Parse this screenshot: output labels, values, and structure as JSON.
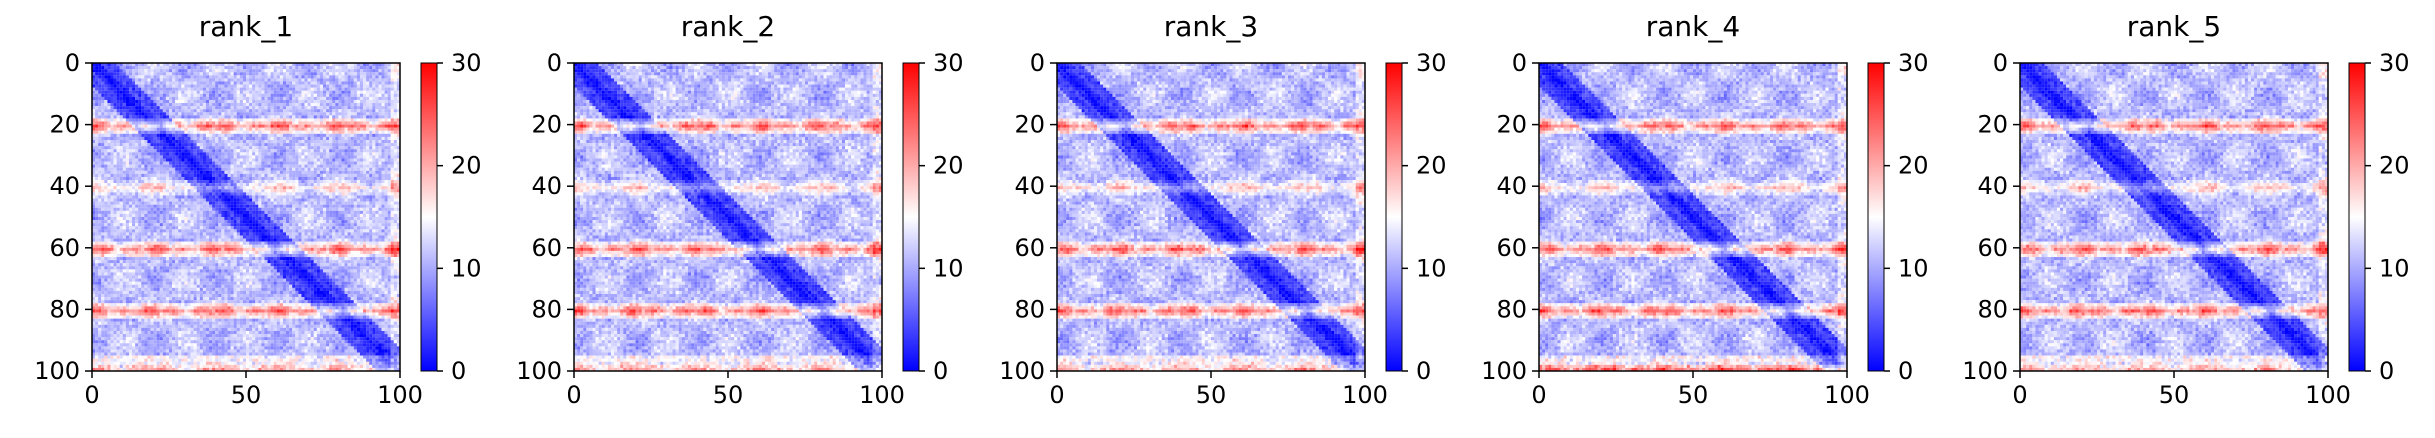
{
  "chart_data": [
    {
      "type": "heatmap",
      "title": "rank_1",
      "x_ticks": [
        0,
        50,
        100
      ],
      "y_ticks": [
        0,
        20,
        40,
        60,
        80,
        100
      ],
      "xlim": [
        0,
        100
      ],
      "ylim": [
        100,
        0
      ],
      "colorbar": {
        "range": [
          0,
          30
        ],
        "ticks": [
          0,
          10,
          20,
          30
        ],
        "colors": [
          "#0000ff",
          "#ffffff",
          "#ff0000"
        ]
      },
      "pattern": {
        "size": 100,
        "strong_rows": [
          20,
          60,
          80
        ],
        "weak_rows": [
          40,
          100
        ]
      }
    },
    {
      "type": "heatmap",
      "title": "rank_2",
      "x_ticks": [
        0,
        50,
        100
      ],
      "y_ticks": [
        0,
        20,
        40,
        60,
        80,
        100
      ],
      "xlim": [
        0,
        100
      ],
      "ylim": [
        100,
        0
      ],
      "colorbar": {
        "range": [
          0,
          30
        ],
        "ticks": [
          0,
          10,
          20,
          30
        ],
        "colors": [
          "#0000ff",
          "#ffffff",
          "#ff0000"
        ]
      },
      "pattern": {
        "size": 100,
        "strong_rows": [
          20,
          60,
          80
        ],
        "weak_rows": [
          40,
          100
        ]
      }
    },
    {
      "type": "heatmap",
      "title": "rank_3",
      "x_ticks": [
        0,
        50,
        100
      ],
      "y_ticks": [
        0,
        20,
        40,
        60,
        80,
        100
      ],
      "xlim": [
        0,
        100
      ],
      "ylim": [
        100,
        0
      ],
      "colorbar": {
        "range": [
          0,
          30
        ],
        "ticks": [
          0,
          10,
          20,
          30
        ],
        "colors": [
          "#0000ff",
          "#ffffff",
          "#ff0000"
        ]
      },
      "pattern": {
        "size": 100,
        "strong_rows": [
          20,
          60,
          80
        ],
        "weak_rows": [
          40,
          100
        ]
      }
    },
    {
      "type": "heatmap",
      "title": "rank_4",
      "x_ticks": [
        0,
        50,
        100
      ],
      "y_ticks": [
        0,
        20,
        40,
        60,
        80,
        100
      ],
      "xlim": [
        0,
        100
      ],
      "ylim": [
        100,
        0
      ],
      "colorbar": {
        "range": [
          0,
          30
        ],
        "ticks": [
          0,
          10,
          20,
          30
        ],
        "colors": [
          "#0000ff",
          "#ffffff",
          "#ff0000"
        ]
      },
      "pattern": {
        "size": 100,
        "strong_rows": [
          20,
          60,
          80,
          100
        ],
        "weak_rows": [
          40
        ]
      }
    },
    {
      "type": "heatmap",
      "title": "rank_5",
      "x_ticks": [
        0,
        50,
        100
      ],
      "y_ticks": [
        0,
        20,
        40,
        60,
        80,
        100
      ],
      "xlim": [
        0,
        100
      ],
      "ylim": [
        100,
        0
      ],
      "colorbar": {
        "range": [
          0,
          30
        ],
        "ticks": [
          0,
          10,
          20,
          30
        ],
        "colors": [
          "#0000ff",
          "#ffffff",
          "#ff0000"
        ]
      },
      "pattern": {
        "size": 100,
        "strong_rows": [
          20,
          60,
          80
        ],
        "weak_rows": [
          40,
          100
        ]
      }
    }
  ]
}
